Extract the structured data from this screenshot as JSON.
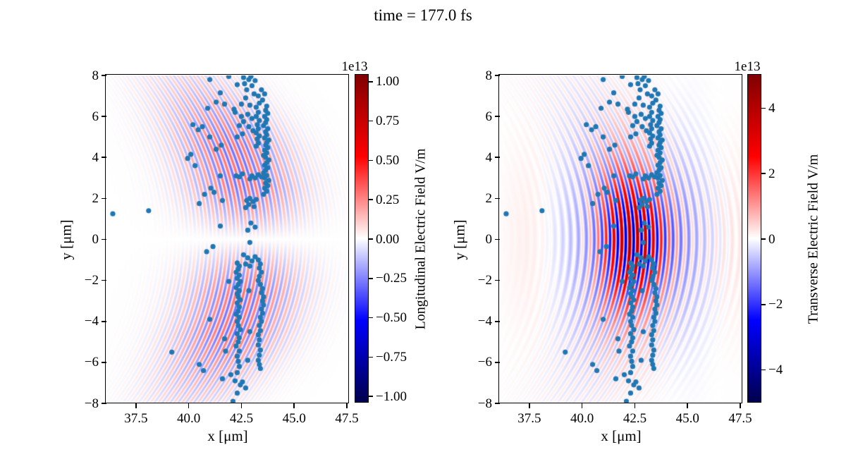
{
  "title": "time = 177.0 fs",
  "scatter": {
    "color": "#1f77b4",
    "marker_diameter_px": 7.2,
    "points": [
      [
        36.4,
        1.25
      ],
      [
        38.1,
        1.4
      ],
      [
        41.0,
        7.8
      ],
      [
        41.9,
        7.95
      ],
      [
        42.3,
        7.55
      ],
      [
        41.5,
        7.15
      ],
      [
        41.3,
        6.7
      ],
      [
        41.7,
        6.6
      ],
      [
        40.9,
        6.4
      ],
      [
        42.15,
        6.35
      ],
      [
        42.6,
        7.9
      ],
      [
        42.85,
        7.8
      ],
      [
        43.0,
        7.5
      ],
      [
        42.75,
        7.3
      ],
      [
        43.1,
        7.1
      ],
      [
        42.7,
        6.9
      ],
      [
        43.3,
        7.0
      ],
      [
        43.45,
        7.3
      ],
      [
        43.6,
        7.1
      ],
      [
        43.5,
        6.8
      ],
      [
        42.5,
        6.6
      ],
      [
        42.9,
        6.55
      ],
      [
        43.2,
        6.45
      ],
      [
        43.7,
        6.5
      ],
      [
        42.95,
        7.95
      ],
      [
        43.15,
        7.75
      ],
      [
        42.65,
        7.6
      ],
      [
        43.35,
        6.65
      ],
      [
        42.2,
        6.2
      ],
      [
        42.5,
        6.0
      ],
      [
        42.8,
        6.1
      ],
      [
        43.0,
        5.9
      ],
      [
        42.6,
        5.75
      ],
      [
        42.4,
        5.55
      ],
      [
        42.85,
        5.5
      ],
      [
        43.05,
        5.3
      ],
      [
        42.55,
        5.15
      ],
      [
        42.3,
        5.0
      ],
      [
        40.2,
        5.6
      ],
      [
        40.45,
        5.35
      ],
      [
        40.65,
        5.5
      ],
      [
        41.0,
        5.0
      ],
      [
        43.2,
        4.55
      ],
      [
        43.3,
        4.7
      ],
      [
        43.25,
        4.9
      ],
      [
        43.35,
        5.05
      ],
      [
        43.2,
        5.2
      ],
      [
        43.3,
        5.4
      ],
      [
        43.25,
        5.6
      ],
      [
        43.35,
        5.8
      ],
      [
        43.2,
        6.0
      ],
      [
        43.3,
        6.2
      ],
      [
        43.55,
        2.2
      ],
      [
        43.7,
        2.35
      ],
      [
        43.6,
        2.5
      ],
      [
        43.75,
        2.62
      ],
      [
        43.65,
        2.75
      ],
      [
        43.8,
        2.88
      ],
      [
        43.6,
        3.0
      ],
      [
        43.7,
        3.12
      ],
      [
        43.55,
        3.25
      ],
      [
        43.65,
        3.38
      ],
      [
        43.75,
        3.5
      ],
      [
        43.6,
        3.62
      ],
      [
        43.7,
        3.75
      ],
      [
        43.8,
        3.88
      ],
      [
        43.65,
        4.0
      ],
      [
        43.55,
        4.1
      ],
      [
        43.7,
        4.22
      ],
      [
        43.6,
        4.35
      ],
      [
        43.75,
        4.48
      ],
      [
        43.65,
        4.6
      ],
      [
        43.7,
        4.72
      ],
      [
        43.8,
        4.85
      ],
      [
        43.6,
        4.95
      ],
      [
        43.7,
        5.1
      ],
      [
        43.65,
        5.25
      ],
      [
        43.75,
        5.4
      ],
      [
        43.55,
        5.55
      ],
      [
        43.65,
        5.7
      ],
      [
        43.7,
        5.85
      ],
      [
        43.6,
        6.0
      ],
      [
        43.75,
        6.15
      ],
      [
        43.65,
        6.3
      ],
      [
        41.3,
        4.4
      ],
      [
        41.55,
        4.6
      ],
      [
        40.1,
        4.15
      ],
      [
        39.95,
        3.95
      ],
      [
        40.3,
        3.6
      ],
      [
        41.5,
        3.1
      ],
      [
        42.25,
        3.1
      ],
      [
        42.4,
        3.05
      ],
      [
        42.55,
        3.2
      ],
      [
        43.0,
        3.1
      ],
      [
        43.15,
        3.0
      ],
      [
        43.3,
        3.15
      ],
      [
        43.45,
        3.05
      ],
      [
        42.9,
        2.95
      ],
      [
        42.75,
        1.9
      ],
      [
        42.9,
        2.0
      ],
      [
        43.05,
        1.85
      ],
      [
        42.85,
        1.7
      ],
      [
        43.1,
        1.6
      ],
      [
        42.7,
        1.55
      ],
      [
        43.2,
        1.95
      ],
      [
        41.05,
        2.5
      ],
      [
        41.2,
        2.3
      ],
      [
        40.75,
        2.2
      ],
      [
        41.6,
        1.9
      ],
      [
        40.5,
        1.75
      ],
      [
        42.95,
        0.8
      ],
      [
        43.15,
        0.6
      ],
      [
        42.8,
        0.45
      ],
      [
        42.9,
        -0.15
      ],
      [
        41.5,
        0.65
      ],
      [
        42.6,
        -0.75
      ],
      [
        42.8,
        -0.9
      ],
      [
        43.0,
        -1.05
      ],
      [
        42.7,
        -1.2
      ],
      [
        43.15,
        -0.85
      ],
      [
        42.9,
        -1.3
      ],
      [
        41.15,
        -0.35
      ],
      [
        40.85,
        -0.6
      ],
      [
        42.3,
        -1.15
      ],
      [
        42.4,
        -1.3
      ],
      [
        42.35,
        -1.45
      ],
      [
        42.25,
        -1.6
      ],
      [
        42.4,
        -1.75
      ],
      [
        42.3,
        -1.9
      ],
      [
        42.45,
        -2.05
      ],
      [
        42.35,
        -2.2
      ],
      [
        42.25,
        -2.35
      ],
      [
        42.4,
        -2.5
      ],
      [
        42.3,
        -2.65
      ],
      [
        42.35,
        -2.8
      ],
      [
        42.45,
        -2.95
      ],
      [
        42.3,
        -3.1
      ],
      [
        42.4,
        -3.3
      ],
      [
        42.35,
        -3.5
      ],
      [
        42.25,
        -3.65
      ],
      [
        42.4,
        -3.8
      ],
      [
        42.3,
        -4.0
      ],
      [
        42.35,
        -4.2
      ],
      [
        42.45,
        -4.4
      ],
      [
        42.3,
        -4.6
      ],
      [
        42.4,
        -4.8
      ],
      [
        42.35,
        -5.0
      ],
      [
        42.25,
        -5.2
      ],
      [
        42.4,
        -5.45
      ],
      [
        42.3,
        -5.7
      ],
      [
        42.35,
        -5.95
      ],
      [
        42.4,
        -6.2
      ],
      [
        42.3,
        -6.5
      ],
      [
        43.3,
        -1.0
      ],
      [
        43.4,
        -1.2
      ],
      [
        43.35,
        -1.4
      ],
      [
        43.45,
        -1.6
      ],
      [
        43.35,
        -1.8
      ],
      [
        43.3,
        -2.0
      ],
      [
        43.4,
        -2.2
      ],
      [
        43.5,
        -2.4
      ],
      [
        43.45,
        -2.6
      ],
      [
        43.55,
        -2.8
      ],
      [
        43.5,
        -3.0
      ],
      [
        43.55,
        -3.2
      ],
      [
        43.45,
        -3.4
      ],
      [
        43.5,
        -3.6
      ],
      [
        43.4,
        -3.8
      ],
      [
        43.45,
        -4.0
      ],
      [
        43.35,
        -4.2
      ],
      [
        43.4,
        -4.45
      ],
      [
        43.3,
        -4.65
      ],
      [
        43.35,
        -4.9
      ],
      [
        43.3,
        -5.15
      ],
      [
        43.4,
        -5.4
      ],
      [
        43.35,
        -5.65
      ],
      [
        43.3,
        -5.9
      ],
      [
        43.35,
        -6.1
      ],
      [
        43.4,
        -6.3
      ],
      [
        42.85,
        -2.5
      ],
      [
        42.9,
        -4.5
      ],
      [
        42.8,
        -5.9
      ],
      [
        41.9,
        -2.05
      ],
      [
        41.0,
        -3.9
      ],
      [
        41.7,
        -4.85
      ],
      [
        41.75,
        -5.45
      ],
      [
        40.5,
        -6.1
      ],
      [
        40.7,
        -6.4
      ],
      [
        41.6,
        -6.8
      ],
      [
        39.2,
        -5.5
      ],
      [
        42.2,
        -6.9
      ],
      [
        42.45,
        -7.1
      ],
      [
        42.7,
        -7.25
      ],
      [
        42.3,
        -7.5
      ],
      [
        42.1,
        -7.9
      ],
      [
        42.55,
        -6.95
      ],
      [
        42.0,
        -6.6
      ]
    ]
  },
  "chart_data": {
    "type": "heatmap",
    "overlay": "scatter",
    "grid": false,
    "x_axis": {
      "label": "x [μm]",
      "lim": [
        36.1,
        47.6
      ],
      "tick_values": [
        37.5,
        40.0,
        42.5,
        45.0,
        47.5
      ],
      "tick_labels": [
        "37.5",
        "40.0",
        "42.5",
        "45.0",
        "47.5"
      ]
    },
    "y_axis": {
      "label": "y [μm]",
      "lim": [
        -8,
        8
      ],
      "tick_values": [
        8,
        6,
        4,
        2,
        0,
        -2,
        -4,
        -6,
        -8
      ],
      "tick_labels": [
        "8",
        "6",
        "4",
        "2",
        "0",
        "−2",
        "−4",
        "−6",
        "−8"
      ]
    },
    "colormap": {
      "name": "seismic",
      "stops": [
        {
          "t": 0.0,
          "rgb": [
            0,
            0,
            77
          ]
        },
        {
          "t": 0.25,
          "rgb": [
            0,
            0,
            255
          ]
        },
        {
          "t": 0.5,
          "rgb": [
            255,
            255,
            255
          ]
        },
        {
          "t": 0.75,
          "rgb": [
            255,
            0,
            0
          ]
        },
        {
          "t": 1.0,
          "rgb": [
            128,
            0,
            0
          ]
        }
      ]
    },
    "panels": [
      {
        "name": "longitudinal",
        "colorbar": {
          "label": "Longitudinal Electric Field V/m",
          "offset_text": "1e13",
          "unit_scale": 10000000000000.0,
          "range": [
            -1.04,
            1.04
          ],
          "tick_values": [
            1.0,
            0.75,
            0.5,
            0.25,
            0.0,
            -0.25,
            -0.5,
            -0.75,
            -1.0
          ],
          "tick_labels": [
            "1.00",
            "0.75",
            "0.50",
            "0.25",
            "0.00",
            "−0.25",
            "−0.50",
            "−0.75",
            "−1.00"
          ]
        },
        "field": {
          "model": "longitudinal",
          "k": 16.8,
          "curvature": 0.045,
          "center_xi": 42.9,
          "sigma_xi": 2.6,
          "y_scale": 3.2,
          "y_sigma": 5.0,
          "y_gain": 1.6,
          "amplitude": 0.3
        }
      },
      {
        "name": "transverse",
        "colorbar": {
          "label": "Transverse Electric Field V/m",
          "offset_text": "1e13",
          "unit_scale": 10000000000000.0,
          "range": [
            -5,
            5
          ],
          "tick_values": [
            4,
            2,
            0,
            -2,
            -4
          ],
          "tick_labels": [
            "4",
            "2",
            "0",
            "−2",
            "−4"
          ]
        },
        "field": {
          "model": "transverse",
          "k": 16.8,
          "curvature": 0.045,
          "core": {
            "amp": 3.0,
            "center": 42.4,
            "sigma": 1.5,
            "y_sigma": 2.9
          },
          "outer": {
            "amp": 1.1,
            "center": 43.0,
            "sigma": 3.0,
            "y_sigma": 6.0
          },
          "wake": {
            "amp": 0.5,
            "k": 1.15,
            "center": 42.4,
            "sigma": 4.5,
            "y_sigma": 5.0
          }
        }
      }
    ]
  }
}
